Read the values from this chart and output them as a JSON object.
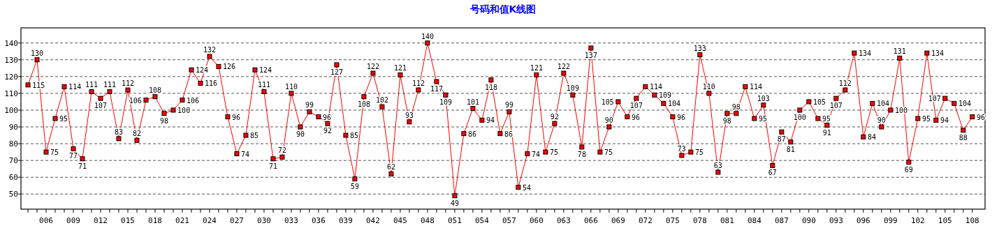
{
  "chart_data": {
    "type": "line",
    "title": "号码和值K线图",
    "categories": [
      null,
      null,
      "006",
      null,
      null,
      "009",
      null,
      null,
      "012",
      null,
      null,
      "015",
      null,
      null,
      "018",
      null,
      null,
      "021",
      null,
      null,
      "024",
      null,
      null,
      "027",
      null,
      null,
      "030",
      null,
      null,
      "033",
      null,
      null,
      "036",
      null,
      null,
      "039",
      null,
      null,
      "042",
      null,
      null,
      "045",
      null,
      null,
      "048",
      null,
      null,
      "051",
      null,
      null,
      "054",
      null,
      null,
      "057",
      null,
      null,
      "060",
      null,
      null,
      "063",
      null,
      null,
      "066",
      null,
      null,
      "069",
      null,
      null,
      "072",
      null,
      null,
      "075",
      null,
      null,
      "078",
      null,
      null,
      "081",
      null,
      null,
      "084",
      null,
      null,
      "087",
      null,
      null,
      "090",
      null,
      null,
      "093",
      null,
      null,
      "096",
      null,
      null,
      "099",
      null,
      null,
      "102",
      null,
      null,
      "105",
      null,
      null,
      "108"
    ],
    "values": [
      115,
      130,
      75,
      95,
      114,
      77,
      71,
      111,
      107,
      111,
      83,
      112,
      82,
      106,
      108,
      98,
      100,
      106,
      124,
      116,
      132,
      126,
      96,
      74,
      85,
      124,
      111,
      71,
      72,
      110,
      90,
      99,
      96,
      92,
      127,
      85,
      59,
      108,
      122,
      102,
      62,
      121,
      93,
      112,
      140,
      117,
      109,
      49,
      86,
      101,
      94,
      118,
      86,
      99,
      54,
      74,
      121,
      75,
      92,
      122,
      109,
      78,
      137,
      75,
      90,
      105,
      96,
      107,
      114,
      109,
      104,
      96,
      73,
      75,
      133,
      110,
      63,
      98,
      98,
      114,
      95,
      103,
      67,
      87,
      81,
      100,
      105,
      95,
      91,
      107,
      112,
      134,
      84,
      104,
      90,
      100,
      131,
      69,
      95,
      134,
      94,
      107,
      104,
      88,
      96
    ],
    "color": "#ff0000",
    "ylim": [
      41,
      149
    ],
    "yticks": [
      50,
      60,
      70,
      80,
      90,
      100,
      110,
      120,
      130,
      140
    ],
    "grid": "y",
    "marker": "square",
    "data_labels": true
  }
}
